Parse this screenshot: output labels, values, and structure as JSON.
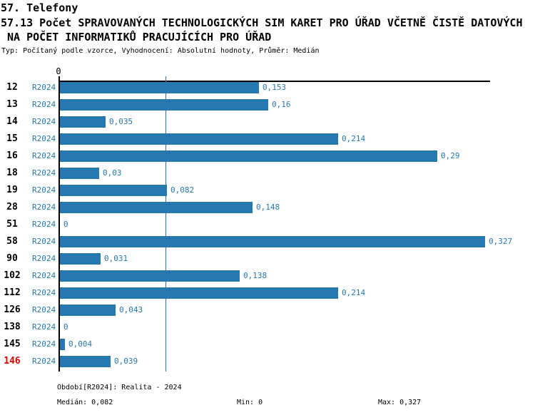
{
  "header": {
    "section_title": "57. Telefony",
    "indicator_title_line1": "57.13 Počet SPRAVOVANÝCH TECHNOLOGICKÝCH SIM KARET PRO ÚŘAD VČETNĚ ČISTĚ DATOVÝCH",
    "indicator_title_line2": " NA POČET INFORMATIKŮ PRACUJÍCÍCH PRO ÚŘAD",
    "meta": "Typ: Počítaný podle vzorce, Vyhodnocení: Absolutní hodnoty, Průměr: Medián"
  },
  "chart_data": {
    "type": "bar",
    "orientation": "horizontal",
    "title": "57.13 Počet SPRAVOVANÝCH TECHNOLOGICKÝCH SIM KARET PRO ÚŘAD VČETNĚ ČISTĚ DATOVÝCH NA POČET INFORMATIKŮ PRACUJÍCÍCH PRO ÚŘAD",
    "categories": [
      "12",
      "13",
      "14",
      "15",
      "16",
      "18",
      "19",
      "28",
      "51",
      "58",
      "90",
      "102",
      "112",
      "126",
      "138",
      "145",
      "146"
    ],
    "series_label": "R2024",
    "values": [
      0.153,
      0.16,
      0.035,
      0.214,
      0.29,
      0.03,
      0.082,
      0.148,
      0,
      0.327,
      0.031,
      0.138,
      0.214,
      0.043,
      0,
      0.004,
      0.039
    ],
    "value_labels": [
      "0,153",
      "0,16",
      "0,035",
      "0,214",
      "0,29",
      "0,03",
      "0,082",
      "0,148",
      "0",
      "0,327",
      "0,031",
      "0,138",
      "0,214",
      "0,043",
      "0",
      "0,004",
      "0,039"
    ],
    "highlighted_category": "146",
    "axis_origin_label": "0",
    "xlim": [
      0,
      0.331
    ],
    "median_line_value": 0.082,
    "legend_position": "none",
    "grid": false,
    "bar_color": "#2678b0",
    "label_color": "#2678b0",
    "highlight_color": "#dd0000",
    "axis_color": "#000000"
  },
  "footer": {
    "period": "Období[R2024]: Realita - 2024",
    "median": "Medián: 0,082",
    "min": "Min: 0",
    "max": "Max: 0,327"
  }
}
